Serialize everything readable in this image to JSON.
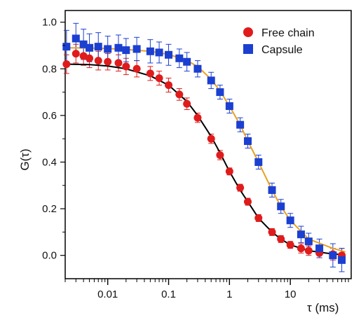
{
  "chart_data": {
    "type": "scatter",
    "xlabel": "τ (ms)",
    "ylabel": "G(τ)",
    "x_scale": "log",
    "xlim": [
      0.002,
      100
    ],
    "ylim": [
      -0.1,
      1.05
    ],
    "x_tick_labels": [
      "0.01",
      "0.1",
      "1",
      "10"
    ],
    "y_tick_labels": [
      "0.0",
      "0.2",
      "0.4",
      "0.6",
      "0.8",
      "1.0"
    ],
    "grid": false,
    "legend_position": "top-right",
    "series": [
      {
        "name": "Free chain",
        "marker": "circle",
        "color": "#e01b1b",
        "x": [
          0.0021,
          0.003,
          0.004,
          0.005,
          0.007,
          0.01,
          0.015,
          0.02,
          0.03,
          0.05,
          0.07,
          0.1,
          0.15,
          0.2,
          0.3,
          0.5,
          0.7,
          1,
          1.5,
          2,
          3,
          5,
          7,
          10,
          15,
          20,
          30,
          50,
          70
        ],
        "y": [
          0.82,
          0.865,
          0.855,
          0.845,
          0.835,
          0.83,
          0.825,
          0.81,
          0.8,
          0.78,
          0.76,
          0.73,
          0.69,
          0.65,
          0.59,
          0.5,
          0.43,
          0.36,
          0.29,
          0.23,
          0.16,
          0.1,
          0.07,
          0.045,
          0.03,
          0.02,
          0.01,
          0.005,
          0.0
        ],
        "error": [
          0.04,
          0.04,
          0.04,
          0.04,
          0.04,
          0.035,
          0.035,
          0.035,
          0.035,
          0.03,
          0.03,
          0.03,
          0.025,
          0.025,
          0.02,
          0.02,
          0.02,
          0.015,
          0.015,
          0.015,
          0.015,
          0.015,
          0.015,
          0.015,
          0.02,
          0.02,
          0.02,
          0.025,
          0.03
        ]
      },
      {
        "name": "Capsule",
        "marker": "square",
        "color": "#1b3fd1",
        "x": [
          0.0021,
          0.003,
          0.004,
          0.005,
          0.007,
          0.01,
          0.015,
          0.02,
          0.03,
          0.05,
          0.07,
          0.1,
          0.15,
          0.2,
          0.3,
          0.5,
          0.7,
          1,
          1.5,
          2,
          3,
          5,
          7,
          10,
          15,
          20,
          30,
          50,
          70
        ],
        "y": [
          0.895,
          0.93,
          0.905,
          0.89,
          0.895,
          0.885,
          0.89,
          0.88,
          0.885,
          0.875,
          0.87,
          0.86,
          0.845,
          0.83,
          0.8,
          0.75,
          0.7,
          0.64,
          0.56,
          0.49,
          0.4,
          0.28,
          0.21,
          0.15,
          0.09,
          0.06,
          0.03,
          0.0,
          -0.02
        ],
        "error": [
          0.07,
          0.065,
          0.065,
          0.06,
          0.06,
          0.055,
          0.055,
          0.05,
          0.05,
          0.05,
          0.045,
          0.045,
          0.04,
          0.04,
          0.035,
          0.035,
          0.03,
          0.03,
          0.03,
          0.03,
          0.03,
          0.03,
          0.03,
          0.03,
          0.035,
          0.035,
          0.04,
          0.05,
          0.05
        ]
      }
    ],
    "fits": [
      {
        "for": "Free chain",
        "color": "#000000",
        "x": [
          0.0021,
          0.005,
          0.01,
          0.02,
          0.05,
          0.1,
          0.2,
          0.3,
          0.5,
          0.7,
          1,
          1.5,
          2,
          3,
          5,
          7,
          10,
          20,
          50,
          80
        ],
        "y": [
          0.82,
          0.818,
          0.812,
          0.8,
          0.77,
          0.73,
          0.66,
          0.6,
          0.51,
          0.44,
          0.36,
          0.28,
          0.23,
          0.16,
          0.1,
          0.07,
          0.045,
          0.02,
          0.006,
          0.003
        ]
      },
      {
        "for": "Capsule",
        "color": "#e8a020",
        "x": [
          0.0021,
          0.005,
          0.01,
          0.02,
          0.05,
          0.1,
          0.2,
          0.3,
          0.5,
          0.7,
          1,
          1.5,
          2,
          3,
          5,
          7,
          10,
          20,
          50,
          80
        ],
        "y": [
          0.89,
          0.889,
          0.887,
          0.883,
          0.875,
          0.862,
          0.835,
          0.81,
          0.755,
          0.705,
          0.64,
          0.56,
          0.49,
          0.4,
          0.28,
          0.21,
          0.15,
          0.07,
          0.03,
          0.015
        ]
      }
    ]
  }
}
